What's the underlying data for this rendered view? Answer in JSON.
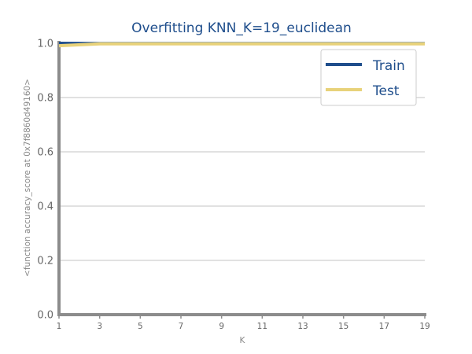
{
  "chart_data": {
    "type": "line",
    "title": "Overfitting KNN_K=19_euclidean",
    "xlabel": "K",
    "ylabel": "<function accuracy_score at 0x7f8860d49160>",
    "x": [
      1,
      3,
      5,
      7,
      9,
      11,
      13,
      15,
      17,
      19
    ],
    "xticks": [
      "1",
      "3",
      "5",
      "7",
      "9",
      "11",
      "13",
      "15",
      "17",
      "19"
    ],
    "yticks": [
      "0.0",
      "0.2",
      "0.4",
      "0.6",
      "0.8",
      "1.0"
    ],
    "xlim": [
      1,
      19
    ],
    "ylim": [
      0,
      1
    ],
    "grid": "horizontal",
    "legend_position": "top-right",
    "series": [
      {
        "name": "Train",
        "color": "#1f4e8c",
        "values": [
          1.0,
          0.999,
          0.999,
          0.999,
          0.999,
          0.999,
          0.999,
          0.999,
          0.999,
          0.999
        ]
      },
      {
        "name": "Test",
        "color": "#e8d27a",
        "values": [
          0.991,
          0.998,
          0.998,
          0.998,
          0.998,
          0.998,
          0.998,
          0.998,
          0.998,
          0.998
        ]
      }
    ]
  }
}
